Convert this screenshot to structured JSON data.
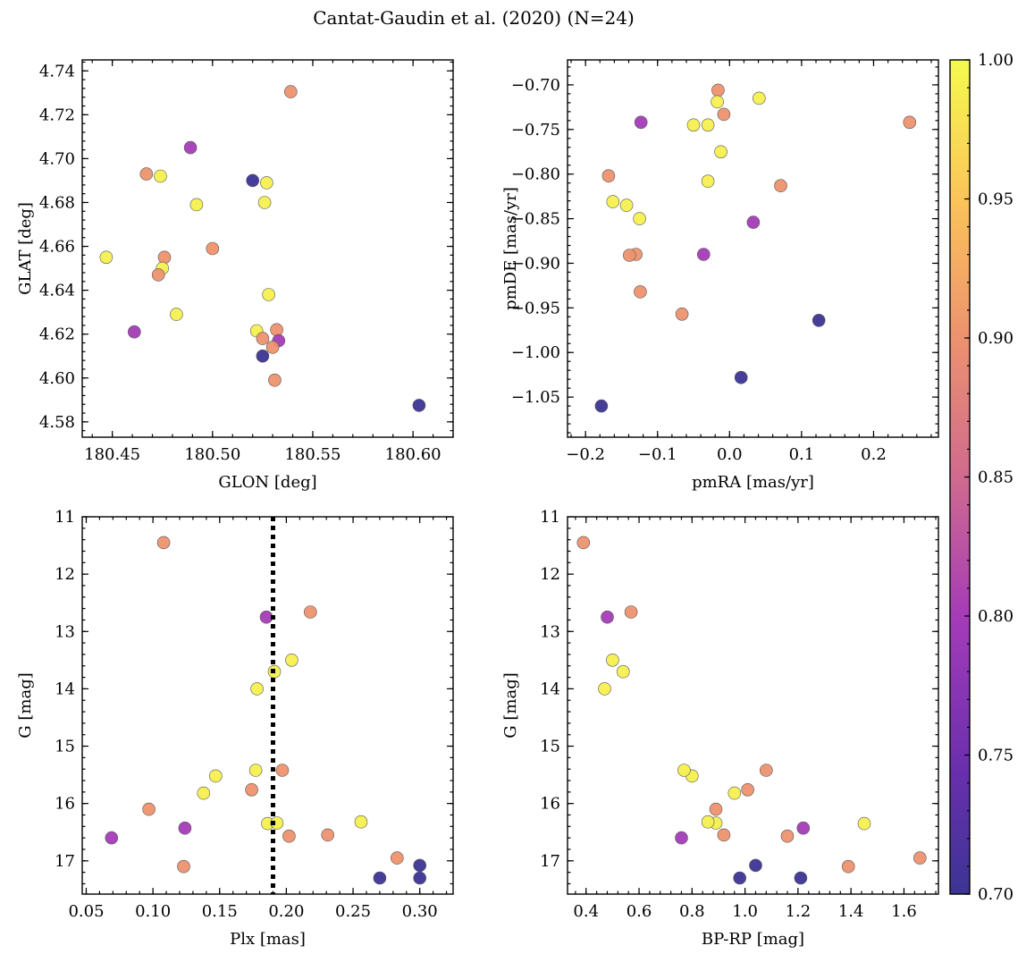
{
  "title": "Cantat-Gaudin et al. (2020) (N=24)",
  "colorbar": {
    "min": 0.7,
    "max": 1.0,
    "ticks": [
      0.7,
      0.75,
      0.8,
      0.85,
      0.9,
      0.95,
      1.0
    ],
    "tick_labels": [
      "0.70",
      "0.75",
      "0.80",
      "0.85",
      "0.90",
      "0.95",
      "1.00"
    ],
    "colormap": "plasma"
  },
  "stars": [
    {
      "glon": 180.539,
      "glat": 4.7305,
      "pmra": 0.25,
      "pmde": -0.742,
      "plx": 0.108,
      "g": 11.45,
      "bprp": 0.39,
      "prob": 0.9
    },
    {
      "glon": 180.489,
      "glat": 4.705,
      "pmra": -0.123,
      "pmde": -0.742,
      "plx": 0.185,
      "g": 12.75,
      "bprp": 0.48,
      "prob": 0.8
    },
    {
      "glon": 180.467,
      "glat": 4.693,
      "pmra": -0.016,
      "pmde": -0.706,
      "plx": 0.218,
      "g": 12.66,
      "bprp": 0.57,
      "prob": 0.9
    },
    {
      "glon": 180.474,
      "glat": 4.692,
      "pmra": -0.017,
      "pmde": -0.719,
      "plx": 0.204,
      "g": 13.5,
      "bprp": 0.5,
      "prob": 0.99
    },
    {
      "glon": 180.527,
      "glat": 4.689,
      "pmra": -0.012,
      "pmde": -0.775,
      "plx": 0.191,
      "g": 13.7,
      "bprp": 0.54,
      "prob": 0.99
    },
    {
      "glon": 180.526,
      "glat": 4.68,
      "pmra": 0.041,
      "pmde": -0.715,
      "plx": 0.178,
      "g": 14.0,
      "bprp": 0.47,
      "prob": 0.99
    },
    {
      "glon": 180.492,
      "glat": 4.679,
      "pmra": -0.03,
      "pmde": -0.745,
      "plx": 0.147,
      "g": 15.52,
      "bprp": 0.8,
      "prob": 0.99
    },
    {
      "glon": 180.447,
      "glat": 4.655,
      "pmra": -0.05,
      "pmde": -0.745,
      "plx": 0.177,
      "g": 15.42,
      "bprp": 0.77,
      "prob": 0.99
    },
    {
      "glon": 180.476,
      "glat": 4.655,
      "pmra": -0.008,
      "pmde": -0.733,
      "plx": 0.197,
      "g": 15.42,
      "bprp": 1.08,
      "prob": 0.9
    },
    {
      "glon": 180.5,
      "glat": 4.659,
      "pmra": -0.168,
      "pmde": -0.802,
      "plx": 0.174,
      "g": 15.76,
      "bprp": 1.01,
      "prob": 0.9
    },
    {
      "glon": 180.475,
      "glat": 4.65,
      "pmra": -0.03,
      "pmde": -0.808,
      "plx": 0.138,
      "g": 15.82,
      "bprp": 0.96,
      "prob": 0.99
    },
    {
      "glon": 180.473,
      "glat": 4.647,
      "pmra": 0.071,
      "pmde": -0.813,
      "plx": 0.097,
      "g": 16.1,
      "bprp": 0.89,
      "prob": 0.9
    },
    {
      "glon": 180.528,
      "glat": 4.638,
      "pmra": -0.162,
      "pmde": -0.831,
      "plx": 0.186,
      "g": 16.35,
      "bprp": 1.45,
      "prob": 0.99
    },
    {
      "glon": 180.482,
      "glat": 4.629,
      "pmra": -0.143,
      "pmde": -0.835,
      "plx": 0.193,
      "g": 16.34,
      "bprp": 0.89,
      "prob": 0.99
    },
    {
      "glon": 180.522,
      "glat": 4.6215,
      "pmra": -0.125,
      "pmde": -0.85,
      "plx": 0.256,
      "g": 16.32,
      "bprp": 0.86,
      "prob": 0.99
    },
    {
      "glon": 180.461,
      "glat": 4.621,
      "pmra": 0.033,
      "pmde": -0.854,
      "plx": 0.124,
      "g": 16.43,
      "bprp": 1.22,
      "prob": 0.8
    },
    {
      "glon": 180.532,
      "glat": 4.622,
      "pmra": -0.13,
      "pmde": -0.89,
      "plx": 0.231,
      "g": 16.55,
      "bprp": 0.92,
      "prob": 0.9
    },
    {
      "glon": 180.525,
      "glat": 4.618,
      "pmra": -0.139,
      "pmde": -0.891,
      "plx": 0.202,
      "g": 16.57,
      "bprp": 1.16,
      "prob": 0.9
    },
    {
      "glon": 180.533,
      "glat": 4.617,
      "pmra": -0.036,
      "pmde": -0.89,
      "plx": 0.069,
      "g": 16.6,
      "bprp": 0.76,
      "prob": 0.8
    },
    {
      "glon": 180.53,
      "glat": 4.614,
      "pmra": -0.124,
      "pmde": -0.932,
      "plx": 0.283,
      "g": 16.95,
      "bprp": 1.66,
      "prob": 0.9
    },
    {
      "glon": 180.531,
      "glat": 4.599,
      "pmra": -0.066,
      "pmde": -0.957,
      "plx": 0.123,
      "g": 17.1,
      "bprp": 1.39,
      "prob": 0.9
    },
    {
      "glon": 180.603,
      "glat": 4.5875,
      "pmra": 0.124,
      "pmde": -0.964,
      "plx": 0.27,
      "g": 17.3,
      "bprp": 0.98,
      "prob": 0.7
    },
    {
      "glon": 180.52,
      "glat": 4.69,
      "pmra": 0.016,
      "pmde": -1.028,
      "plx": 0.3,
      "g": 17.08,
      "bprp": 1.04,
      "prob": 0.7
    },
    {
      "glon": 180.525,
      "glat": 4.61,
      "pmra": -0.178,
      "pmde": -1.06,
      "plx": 0.3,
      "g": 17.3,
      "bprp": 1.21,
      "prob": 0.7
    }
  ],
  "chart_data": [
    {
      "type": "scatter",
      "title": "",
      "xlabel": "GLON [deg]",
      "ylabel": "GLAT [deg]",
      "xlim": [
        180.435,
        180.62
      ],
      "ylim": [
        4.573,
        4.745
      ],
      "xticks": [
        180.45,
        180.5,
        180.55,
        180.6
      ],
      "xtick_labels": [
        "180.45",
        "180.50",
        "180.55",
        "180.60"
      ],
      "yticks": [
        4.58,
        4.6,
        4.62,
        4.64,
        4.66,
        4.68,
        4.7,
        4.72,
        4.74
      ],
      "ytick_labels": [
        "4.58",
        "4.60",
        "4.62",
        "4.64",
        "4.66",
        "4.68",
        "4.70",
        "4.72",
        "4.74"
      ],
      "x_field": "glon",
      "y_field": "glat",
      "invert_y": false
    },
    {
      "type": "scatter",
      "title": "",
      "xlabel": "pmRA [mas/yr]",
      "ylabel": "pmDE [mas/yr]",
      "xlim": [
        -0.225,
        0.29
      ],
      "ylim": [
        -1.095,
        -0.672
      ],
      "xticks": [
        -0.2,
        -0.1,
        0.0,
        0.1,
        0.2
      ],
      "xtick_labels": [
        "−0.2",
        "−0.1",
        "0.0",
        "0.1",
        "0.2"
      ],
      "yticks": [
        -1.05,
        -1.0,
        -0.95,
        -0.9,
        -0.85,
        -0.8,
        -0.75,
        -0.7
      ],
      "ytick_labels": [
        "−1.05",
        "−1.00",
        "−0.95",
        "−0.90",
        "−0.85",
        "−0.80",
        "−0.75",
        "−0.70"
      ],
      "x_field": "pmra",
      "y_field": "pmde",
      "invert_y": false
    },
    {
      "type": "scatter",
      "title": "",
      "xlabel": "Plx [mas]",
      "ylabel": "G [mag]",
      "xlim": [
        0.047,
        0.325
      ],
      "ylim": [
        11.0,
        17.58
      ],
      "xticks": [
        0.05,
        0.1,
        0.15,
        0.2,
        0.25,
        0.3
      ],
      "xtick_labels": [
        "0.05",
        "0.10",
        "0.15",
        "0.20",
        "0.25",
        "0.30"
      ],
      "yticks": [
        11,
        12,
        13,
        14,
        15,
        16,
        17
      ],
      "ytick_labels": [
        "11",
        "12",
        "13",
        "14",
        "15",
        "16",
        "17"
      ],
      "x_field": "plx",
      "y_field": "g",
      "invert_y": true,
      "vline": 0.19
    },
    {
      "type": "scatter",
      "title": "",
      "xlabel": "BP-RP [mag]",
      "ylabel": "G [mag]",
      "xlim": [
        0.33,
        1.73
      ],
      "ylim": [
        11.0,
        17.58
      ],
      "xticks": [
        0.4,
        0.6,
        0.8,
        1.0,
        1.2,
        1.4,
        1.6
      ],
      "xtick_labels": [
        "0.4",
        "0.6",
        "0.8",
        "1.0",
        "1.2",
        "1.4",
        "1.6"
      ],
      "yticks": [
        11,
        12,
        13,
        14,
        15,
        16,
        17
      ],
      "ytick_labels": [
        "11",
        "12",
        "13",
        "14",
        "15",
        "16",
        "17"
      ],
      "x_field": "bprp",
      "y_field": "g",
      "invert_y": true
    }
  ]
}
